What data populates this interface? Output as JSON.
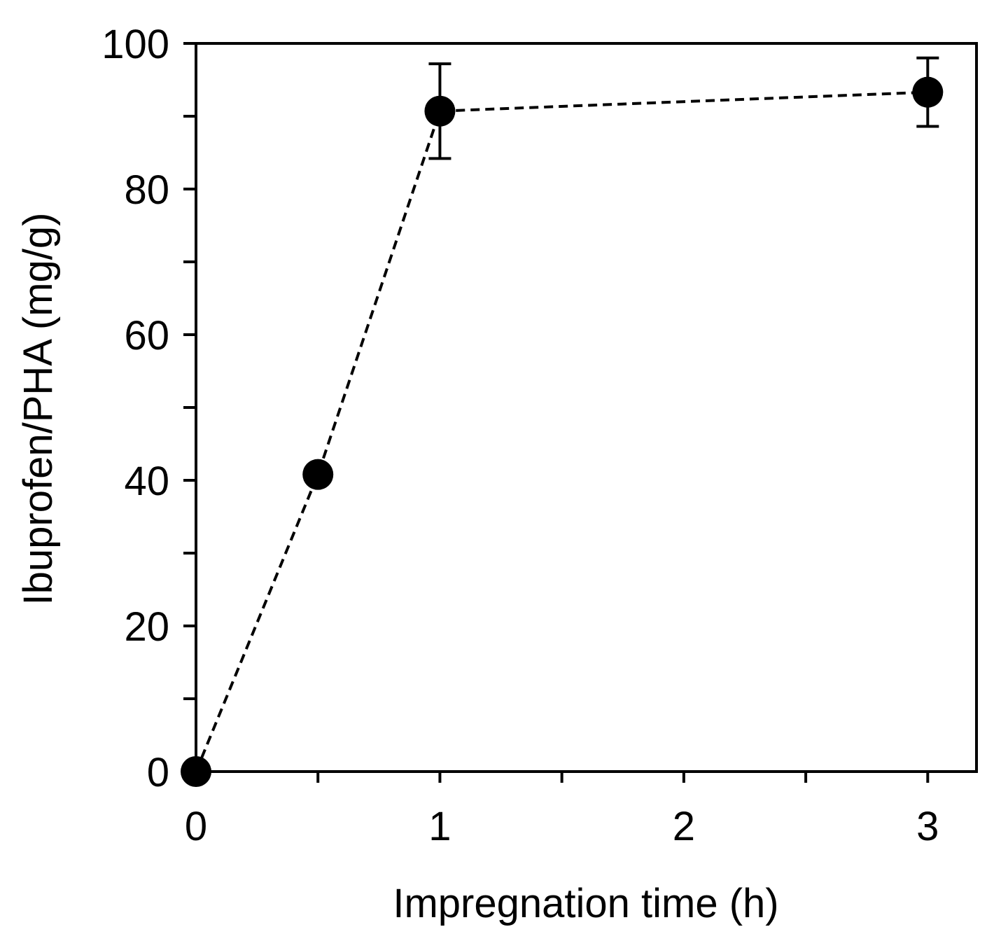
{
  "chart_data": {
    "type": "scatter",
    "title": "",
    "xlabel": "Impregnation time (h)",
    "ylabel": "Ibuprofen/PHA (mg/g)",
    "xlim": [
      0,
      3.2
    ],
    "ylim": [
      0,
      100
    ],
    "x_ticks": [
      0,
      1,
      2,
      3
    ],
    "x_tick_labels": [
      "0",
      "1",
      "2",
      "3"
    ],
    "x_minor_ticks": [
      0.5,
      1.5,
      2.5
    ],
    "y_ticks": [
      0,
      20,
      40,
      60,
      80,
      100
    ],
    "y_tick_labels": [
      "0",
      "20",
      "40",
      "60",
      "80",
      "100"
    ],
    "y_minor_ticks": [
      10,
      30,
      50,
      70,
      90
    ],
    "grid": false,
    "legend": "none",
    "series": [
      {
        "marker": "filled-circle",
        "line_style": "dashed",
        "color": "#000000",
        "points": [
          {
            "x": 0,
            "y": 0,
            "err": null
          },
          {
            "x": 0.5,
            "y": 40.8,
            "err": null
          },
          {
            "x": 1,
            "y": 90.7,
            "err": 6.5
          },
          {
            "x": 3,
            "y": 93.3,
            "err": 4.7
          }
        ]
      }
    ]
  }
}
